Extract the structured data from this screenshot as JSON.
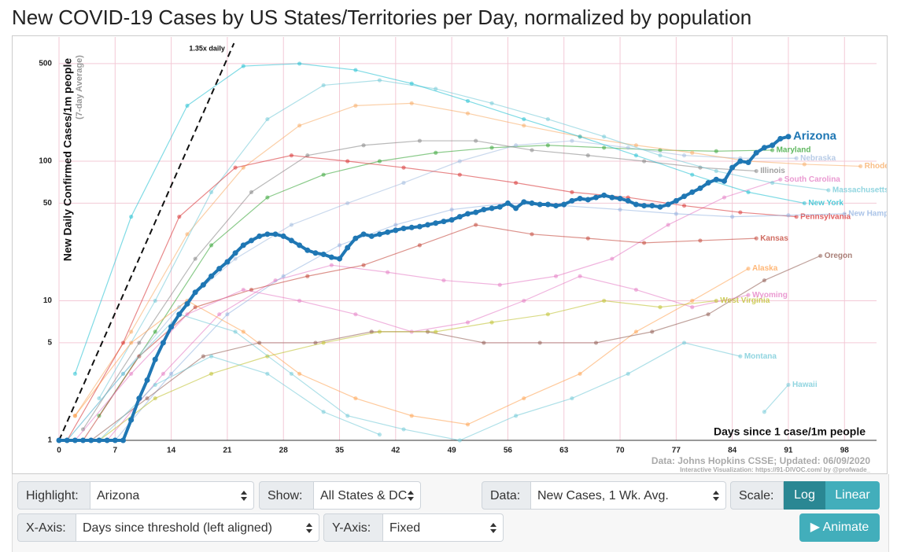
{
  "chart_data": {
    "type": "line",
    "title": "New COVID-19 Cases by US States/Territories per Day, normalized by population",
    "y_label": "New Daily Confirmed Cases/1m people",
    "y_label_note": "(7-day Average)",
    "x_label": "Days since 1 case/1m people",
    "source": "Data: Johns Hopkins CSSE; Updated: 06/09/2020",
    "credit": "Interactive Visualization: https://91-DIVOC.com/ by @profwade_",
    "annotation": {
      "text": "1.35x daily",
      "growth_rate": 1.35
    },
    "log_y": true,
    "grid": true,
    "xlim": [
      0,
      102
    ],
    "ylim": [
      1,
      700
    ],
    "xticks": [
      0,
      7,
      14,
      21,
      28,
      35,
      42,
      49,
      56,
      63,
      70,
      77,
      84,
      91,
      98
    ],
    "yticks": [
      1,
      5,
      10,
      50,
      100,
      500
    ],
    "series": [
      {
        "name": "Maryland",
        "color": "#2ca02c",
        "x": [
          5,
          12,
          19,
          26,
          33,
          40,
          47,
          54,
          61,
          68,
          75,
          82,
          89
        ],
        "values": [
          1.5,
          6,
          25,
          55,
          80,
          100,
          115,
          125,
          130,
          125,
          120,
          118,
          120
        ]
      },
      {
        "name": "Nebraska",
        "color": "#9fb9de",
        "x": [
          1,
          8,
          15,
          22,
          29,
          36,
          43,
          50,
          57,
          64,
          71,
          78,
          85,
          92
        ],
        "values": [
          1,
          3,
          9,
          20,
          35,
          50,
          70,
          100,
          130,
          140,
          125,
          110,
          105,
          105
        ]
      },
      {
        "name": "Rhode Island",
        "color": "#f7a85e",
        "x": [
          2,
          9,
          16,
          23,
          30,
          37,
          44,
          51,
          58,
          65,
          72,
          79,
          86,
          93,
          100
        ],
        "values": [
          1.5,
          6,
          30,
          90,
          180,
          250,
          260,
          220,
          180,
          150,
          130,
          115,
          100,
          95,
          92
        ]
      },
      {
        "name": "Illinois",
        "color": "#7f7f7f",
        "x": [
          3,
          10,
          17,
          24,
          31,
          38,
          45,
          52,
          59,
          66,
          73,
          80,
          87
        ],
        "values": [
          1.2,
          5,
          20,
          60,
          110,
          130,
          140,
          140,
          120,
          110,
          100,
          90,
          85
        ]
      },
      {
        "name": "South Carolina",
        "color": "#e377c2",
        "x": [
          6,
          13,
          20,
          27,
          34,
          41,
          48,
          55,
          62,
          69,
          76,
          83,
          90
        ],
        "values": [
          1,
          3,
          8,
          14,
          18,
          16,
          14,
          13,
          15,
          20,
          35,
          55,
          74
        ]
      },
      {
        "name": "Massachusetts",
        "color": "#6cc7d6",
        "x": [
          5,
          12,
          19,
          26,
          33,
          40,
          47,
          54,
          61,
          68,
          75,
          82,
          89,
          96
        ],
        "values": [
          2,
          10,
          60,
          200,
          350,
          380,
          330,
          260,
          200,
          150,
          110,
          85,
          70,
          62
        ]
      },
      {
        "name": "New York",
        "color": "#17becf",
        "x": [
          2,
          9,
          16,
          23,
          30,
          37,
          44,
          51,
          58,
          65,
          72,
          79,
          86,
          93
        ],
        "values": [
          3,
          40,
          250,
          480,
          500,
          450,
          360,
          270,
          200,
          150,
          110,
          80,
          60,
          50
        ]
      },
      {
        "name": "Pennsylvania",
        "color": "#d62728",
        "x": [
          1,
          8,
          15,
          22,
          29,
          36,
          43,
          50,
          57,
          64,
          71,
          78,
          85,
          92
        ],
        "values": [
          1,
          5,
          40,
          90,
          110,
          100,
          90,
          80,
          70,
          60,
          55,
          48,
          43,
          40
        ]
      },
      {
        "name": "New Hampshire",
        "color": "#8fb0e0",
        "x": [
          7,
          14,
          21,
          28,
          35,
          42,
          49,
          56,
          63,
          70,
          77,
          84,
          91,
          98
        ],
        "values": [
          1,
          3,
          8,
          15,
          25,
          35,
          45,
          50,
          48,
          45,
          42,
          40,
          41,
          42
        ]
      },
      {
        "name": "Kansas",
        "color": "#c0392b",
        "x": [
          3,
          10,
          17,
          24,
          31,
          38,
          45,
          52,
          59,
          66,
          73,
          80,
          87
        ],
        "values": [
          1,
          4,
          9,
          12,
          15,
          18,
          25,
          35,
          30,
          28,
          26,
          27,
          28
        ]
      },
      {
        "name": "Alaska",
        "color": "#ff9f4a",
        "x": [
          2,
          9,
          16,
          23,
          30,
          37,
          44,
          51,
          58,
          65,
          72,
          79,
          86
        ],
        "values": [
          1.5,
          5,
          10,
          6,
          3,
          2,
          1.5,
          1.3,
          2,
          3,
          6,
          10,
          17
        ]
      },
      {
        "name": "Oregon",
        "color": "#8c564b",
        "x": [
          4,
          11,
          18,
          25,
          32,
          39,
          46,
          53,
          60,
          67,
          74,
          81,
          88,
          95
        ],
        "values": [
          1,
          2,
          4,
          5,
          5,
          6,
          6,
          5,
          5,
          5,
          6,
          8,
          14,
          21
        ]
      },
      {
        "name": "Wyoming",
        "color": "#e377c2",
        "x": [
          2,
          9,
          16,
          23,
          30,
          37,
          44,
          51,
          58,
          65,
          72,
          79,
          86
        ],
        "values": [
          1,
          3,
          8,
          12,
          10,
          8,
          6,
          7,
          10,
          15,
          12,
          9,
          11
        ]
      },
      {
        "name": "West Virginia",
        "color": "#bcbd22",
        "x": [
          5,
          12,
          19,
          26,
          33,
          40,
          47,
          54,
          61,
          68,
          75,
          82
        ],
        "values": [
          1,
          2,
          3,
          4,
          5,
          6,
          6,
          7,
          8,
          10,
          9,
          10
        ]
      },
      {
        "name": "Montana",
        "color": "#6cc7d6",
        "x": [
          1,
          8,
          15,
          22,
          29,
          36,
          43,
          50,
          57,
          64,
          71,
          78,
          85
        ],
        "values": [
          1,
          3,
          8,
          6,
          3,
          1.5,
          1.2,
          1,
          1.5,
          2,
          3,
          5,
          4
        ]
      },
      {
        "name": "Hawaii",
        "color": "#6cc7d6",
        "x": [
          5,
          12,
          19,
          26,
          33,
          40,
          47,
          54,
          61,
          68,
          75,
          82,
          88,
          91
        ],
        "values": [
          1,
          2.5,
          4,
          3,
          1.6,
          1.1,
          null,
          null,
          null,
          null,
          null,
          null,
          1.6,
          2.5
        ]
      },
      {
        "name": "Arizona",
        "color": "#1f77b4",
        "highlight": true,
        "x": [
          0,
          1,
          2,
          3,
          4,
          5,
          6,
          7,
          8,
          9,
          10,
          11,
          12,
          13,
          14,
          15,
          16,
          17,
          18,
          19,
          20,
          21,
          22,
          23,
          24,
          25,
          26,
          27,
          28,
          29,
          30,
          31,
          32,
          33,
          34,
          35,
          36,
          37,
          38,
          39,
          40,
          41,
          42,
          43,
          44,
          45,
          46,
          47,
          48,
          49,
          50,
          51,
          52,
          53,
          54,
          55,
          56,
          57,
          58,
          59,
          60,
          61,
          62,
          63,
          64,
          65,
          66,
          67,
          68,
          69,
          70,
          71,
          72,
          73,
          74,
          75,
          76,
          77,
          78,
          79,
          80,
          81,
          82,
          83,
          84,
          85,
          86,
          87,
          88,
          89,
          90,
          91
        ],
        "values": [
          1,
          1,
          1,
          1,
          1,
          1,
          1,
          1,
          1,
          1.4,
          2,
          2.7,
          3.8,
          5,
          6.5,
          8,
          9.5,
          11.5,
          13,
          15,
          17,
          19,
          22,
          25,
          27,
          29,
          30,
          30,
          29,
          27,
          25,
          23,
          22,
          21.5,
          20.5,
          20,
          24,
          28,
          30,
          29,
          30,
          31,
          32,
          33,
          33.5,
          34,
          35,
          36,
          37,
          38,
          40,
          42,
          43,
          45,
          46,
          47,
          50,
          46,
          51,
          50,
          49,
          49,
          48,
          49,
          52,
          54,
          53,
          55,
          57,
          55,
          54,
          52,
          49,
          48,
          48,
          47,
          49,
          52,
          56,
          60,
          64,
          70,
          74,
          72,
          90,
          100,
          98,
          115,
          125,
          130,
          145,
          150
        ]
      }
    ]
  },
  "controls": {
    "highlight": {
      "label": "Highlight:",
      "value": "Arizona"
    },
    "show": {
      "label": "Show:",
      "value": "All States & DC"
    },
    "data": {
      "label": "Data:",
      "value": "New Cases, 1 Wk. Avg."
    },
    "scale": {
      "label": "Scale:",
      "options": [
        "Log",
        "Linear"
      ],
      "active": "Log"
    },
    "x_axis": {
      "label": "X-Axis:",
      "value": "Days since threshold (left aligned)"
    },
    "y_axis": {
      "label": "Y-Axis:",
      "value": "Fixed"
    },
    "animate": "▶ Animate"
  }
}
